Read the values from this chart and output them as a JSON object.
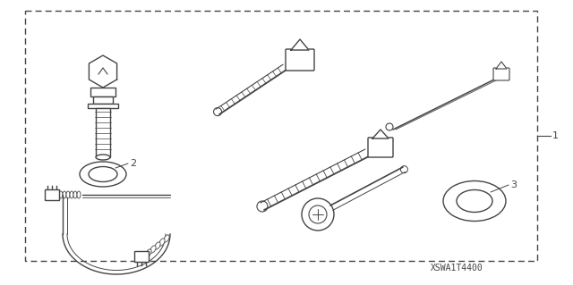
{
  "background_color": "#ffffff",
  "fig_width": 6.4,
  "fig_height": 3.19,
  "dpi": 100,
  "line_color": "#444444",
  "text_color": "#444444",
  "part_code": "XSWA1T4400"
}
